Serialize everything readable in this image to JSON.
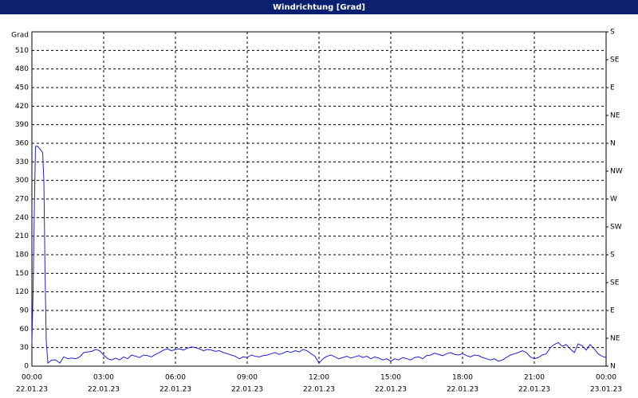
{
  "chart_data": {
    "type": "line",
    "title": "Windrichtung [Grad]",
    "y_label": "Grad",
    "xlim": [
      0,
      24
    ],
    "xticks": [
      {
        "value": 0,
        "label": "00:00"
      },
      {
        "value": 3,
        "label": "03:00"
      },
      {
        "value": 6,
        "label": "06:00"
      },
      {
        "value": 9,
        "label": "09:00"
      },
      {
        "value": 12,
        "label": "12:00"
      },
      {
        "value": 15,
        "label": "15:00"
      },
      {
        "value": 18,
        "label": "18:00"
      },
      {
        "value": 21,
        "label": "21:00"
      },
      {
        "value": 24,
        "label": "00:00"
      }
    ],
    "xtick_dates": [
      "22.01.23",
      "22.01.23",
      "22.01.23",
      "22.01.23",
      "22.01.23",
      "22.01.23",
      "22.01.23",
      "22.01.23",
      "23.01.23"
    ],
    "ylim": [
      0,
      540
    ],
    "yticks": [
      0,
      30,
      60,
      90,
      120,
      150,
      180,
      210,
      240,
      270,
      300,
      330,
      360,
      390,
      420,
      450,
      480,
      510
    ],
    "y2lim": [
      0,
      540
    ],
    "y2ticks": [
      {
        "value": 0,
        "label": "N"
      },
      {
        "value": 45,
        "label": "NE"
      },
      {
        "value": 90,
        "label": "E"
      },
      {
        "value": 135,
        "label": "SE"
      },
      {
        "value": 180,
        "label": "S"
      },
      {
        "value": 225,
        "label": "SW"
      },
      {
        "value": 270,
        "label": "W"
      },
      {
        "value": 315,
        "label": "NW"
      },
      {
        "value": 360,
        "label": "N"
      },
      {
        "value": 405,
        "label": "NE"
      },
      {
        "value": 450,
        "label": "E"
      },
      {
        "value": 495,
        "label": "SE"
      },
      {
        "value": 540,
        "label": "S"
      }
    ],
    "grid": true,
    "series": [
      {
        "color": "#2020d0",
        "x": [
          0,
          0.05,
          0.1,
          0.15,
          0.25,
          0.35,
          0.45,
          0.5,
          0.55,
          0.6,
          0.67,
          0.83,
          1.0,
          1.17,
          1.33,
          1.5,
          1.67,
          1.83,
          2.0,
          2.17,
          2.33,
          2.5,
          2.67,
          2.83,
          3.0,
          3.17,
          3.33,
          3.5,
          3.67,
          3.83,
          4.0,
          4.17,
          4.33,
          4.5,
          4.67,
          4.83,
          5.0,
          5.17,
          5.33,
          5.5,
          5.67,
          5.83,
          6.0,
          6.17,
          6.33,
          6.5,
          6.67,
          6.83,
          7.0,
          7.17,
          7.33,
          7.5,
          7.67,
          7.83,
          8.0,
          8.17,
          8.33,
          8.5,
          8.67,
          8.83,
          9.0,
          9.17,
          9.33,
          9.5,
          9.67,
          9.83,
          10.0,
          10.17,
          10.33,
          10.5,
          10.67,
          10.83,
          11.0,
          11.17,
          11.33,
          11.5,
          11.67,
          11.83,
          12.0,
          12.17,
          12.33,
          12.5,
          12.67,
          12.83,
          13.0,
          13.17,
          13.33,
          13.5,
          13.67,
          13.83,
          14.0,
          14.17,
          14.33,
          14.5,
          14.67,
          14.83,
          15.0,
          15.17,
          15.33,
          15.5,
          15.67,
          15.83,
          16.0,
          16.17,
          16.33,
          16.5,
          16.67,
          16.83,
          17.0,
          17.17,
          17.33,
          17.5,
          17.67,
          17.83,
          18.0,
          18.17,
          18.33,
          18.5,
          18.67,
          18.83,
          19.0,
          19.17,
          19.33,
          19.5,
          19.67,
          19.83,
          20.0,
          20.17,
          20.33,
          20.5,
          20.67,
          20.83,
          21.0,
          21.17,
          21.33,
          21.5,
          21.67,
          21.83,
          22.0,
          22.17,
          22.33,
          22.5,
          22.67,
          22.83,
          23.0,
          23.17,
          23.33,
          23.5,
          23.67,
          23.83,
          24.0
        ],
        "values": [
          38,
          120,
          250,
          355,
          355,
          350,
          345,
          300,
          150,
          40,
          5,
          10,
          10,
          5,
          15,
          12,
          13,
          12,
          15,
          22,
          23,
          24,
          27,
          25,
          18,
          12,
          10,
          13,
          10,
          15,
          12,
          18,
          16,
          14,
          18,
          17,
          15,
          19,
          22,
          26,
          28,
          25,
          27,
          28,
          26,
          29,
          31,
          30,
          28,
          25,
          27,
          26,
          24,
          25,
          22,
          20,
          18,
          16,
          12,
          15,
          14,
          18,
          16,
          15,
          17,
          18,
          20,
          22,
          19,
          21,
          24,
          22,
          25,
          23,
          27,
          25,
          20,
          16,
          5,
          12,
          16,
          18,
          15,
          12,
          14,
          16,
          13,
          15,
          17,
          14,
          16,
          12,
          15,
          13,
          10,
          12,
          8,
          12,
          10,
          14,
          12,
          10,
          14,
          15,
          12,
          17,
          18,
          21,
          19,
          17,
          20,
          22,
          19,
          18,
          20,
          17,
          15,
          18,
          17,
          14,
          12,
          10,
          12,
          8,
          10,
          14,
          18,
          20,
          22,
          25,
          22,
          15,
          12,
          14,
          18,
          20,
          30,
          35,
          38,
          32,
          35,
          28,
          22,
          36,
          33,
          26,
          35,
          28,
          20,
          16,
          14
        ]
      }
    ]
  }
}
